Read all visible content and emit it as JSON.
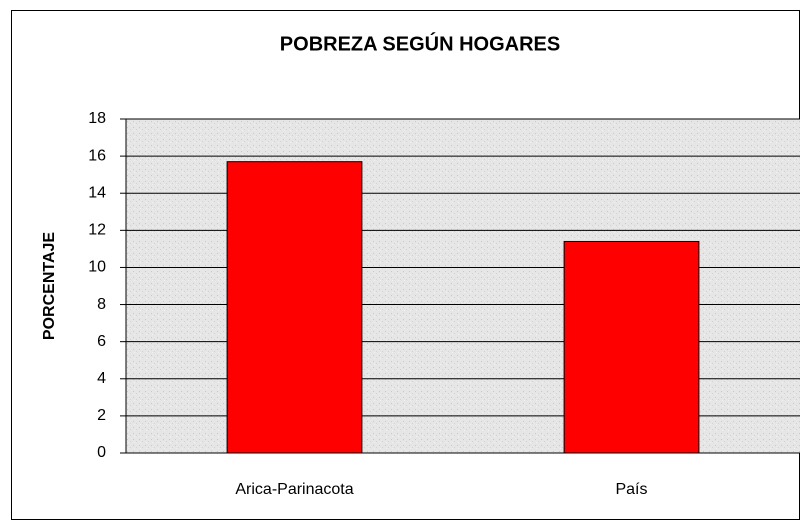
{
  "chart_data": {
    "type": "bar",
    "title": "POBREZA SEGÚN HOGARES",
    "y_label": "PORCENTAJE",
    "categories": [
      "Arica-Parinacota",
      "País"
    ],
    "values": [
      15.7,
      11.4
    ],
    "color": "#ff0000",
    "ylim": [
      0,
      18
    ],
    "yticks": [
      0,
      2,
      4,
      6,
      8,
      10,
      12,
      14,
      16,
      18
    ],
    "grid": true
  }
}
